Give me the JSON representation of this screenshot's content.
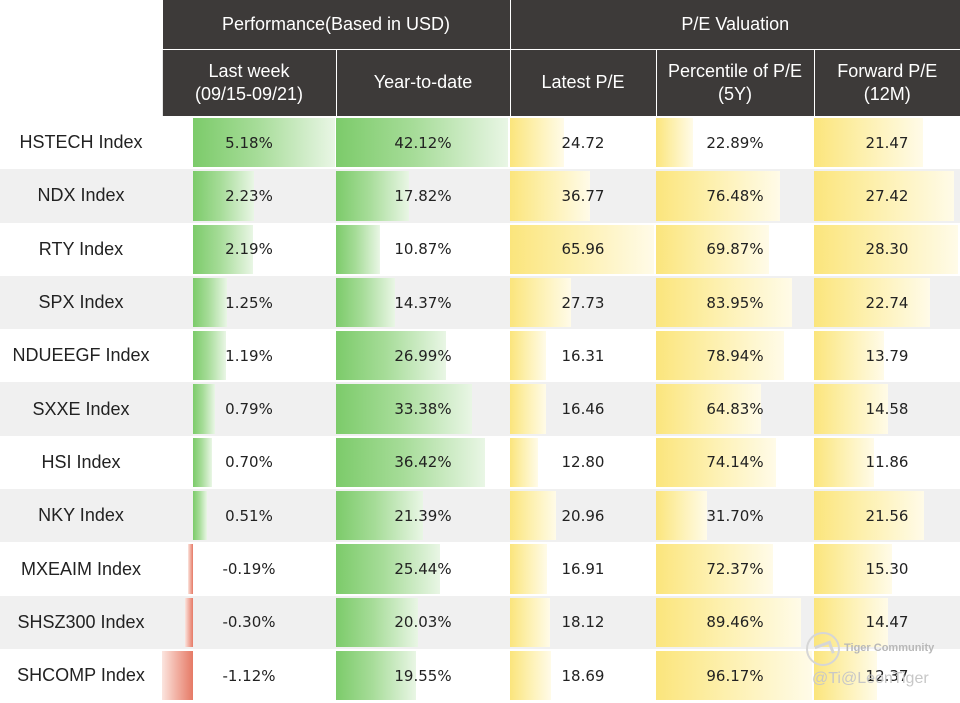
{
  "header": {
    "group_performance": "Performance(Based in USD)",
    "group_valuation": "P/E Valuation",
    "col_last_week_l1": "Last week",
    "col_last_week_l2": "(09/15-09/21)",
    "col_ytd": "Year-to-date",
    "col_latest_pe": "Latest P/E",
    "col_pctl_l1": "Percentile of P/E",
    "col_pctl_l2": "(5Y)",
    "col_fwd_l1": "Forward P/E",
    "col_fwd_l2": "(12M)"
  },
  "chart_data": {
    "type": "table",
    "columns": [
      "Last week (09/15-09/21)",
      "Year-to-date",
      "Latest P/E",
      "Percentile of P/E (5Y)",
      "Forward P/E (12M)"
    ],
    "rows": [
      {
        "name": "HSTECH Index",
        "last_week": "5.18%",
        "last_week_v": 5.18,
        "ytd": "42.12%",
        "ytd_v": 42.12,
        "latest_pe": "24.72",
        "latest_pe_v": 24.72,
        "pctl": "22.89%",
        "pctl_v": 22.89,
        "fwd_pe": "21.47",
        "fwd_pe_v": 21.47
      },
      {
        "name": "NDX Index",
        "last_week": "2.23%",
        "last_week_v": 2.23,
        "ytd": "17.82%",
        "ytd_v": 17.82,
        "latest_pe": "36.77",
        "latest_pe_v": 36.77,
        "pctl": "76.48%",
        "pctl_v": 76.48,
        "fwd_pe": "27.42",
        "fwd_pe_v": 27.42
      },
      {
        "name": "RTY Index",
        "last_week": "2.19%",
        "last_week_v": 2.19,
        "ytd": "10.87%",
        "ytd_v": 10.87,
        "latest_pe": "65.96",
        "latest_pe_v": 65.96,
        "pctl": "69.87%",
        "pctl_v": 69.87,
        "fwd_pe": "28.30",
        "fwd_pe_v": 28.3
      },
      {
        "name": "SPX Index",
        "last_week": "1.25%",
        "last_week_v": 1.25,
        "ytd": "14.37%",
        "ytd_v": 14.37,
        "latest_pe": "27.73",
        "latest_pe_v": 27.73,
        "pctl": "83.95%",
        "pctl_v": 83.95,
        "fwd_pe": "22.74",
        "fwd_pe_v": 22.74
      },
      {
        "name": "NDUEEGF Index",
        "last_week": "1.19%",
        "last_week_v": 1.19,
        "ytd": "26.99%",
        "ytd_v": 26.99,
        "latest_pe": "16.31",
        "latest_pe_v": 16.31,
        "pctl": "78.94%",
        "pctl_v": 78.94,
        "fwd_pe": "13.79",
        "fwd_pe_v": 13.79
      },
      {
        "name": "SXXE Index",
        "last_week": "0.79%",
        "last_week_v": 0.79,
        "ytd": "33.38%",
        "ytd_v": 33.38,
        "latest_pe": "16.46",
        "latest_pe_v": 16.46,
        "pctl": "64.83%",
        "pctl_v": 64.83,
        "fwd_pe": "14.58",
        "fwd_pe_v": 14.58
      },
      {
        "name": "HSI Index",
        "last_week": "0.70%",
        "last_week_v": 0.7,
        "ytd": "36.42%",
        "ytd_v": 36.42,
        "latest_pe": "12.80",
        "latest_pe_v": 12.8,
        "pctl": "74.14%",
        "pctl_v": 74.14,
        "fwd_pe": "11.86",
        "fwd_pe_v": 11.86
      },
      {
        "name": "NKY Index",
        "last_week": "0.51%",
        "last_week_v": 0.51,
        "ytd": "21.39%",
        "ytd_v": 21.39,
        "latest_pe": "20.96",
        "latest_pe_v": 20.96,
        "pctl": "31.70%",
        "pctl_v": 31.7,
        "fwd_pe": "21.56",
        "fwd_pe_v": 21.56
      },
      {
        "name": "MXEAIM Index",
        "last_week": "-0.19%",
        "last_week_v": -0.19,
        "ytd": "25.44%",
        "ytd_v": 25.44,
        "latest_pe": "16.91",
        "latest_pe_v": 16.91,
        "pctl": "72.37%",
        "pctl_v": 72.37,
        "fwd_pe": "15.30",
        "fwd_pe_v": 15.3
      },
      {
        "name": "SHSZ300 Index",
        "last_week": "-0.30%",
        "last_week_v": -0.3,
        "ytd": "20.03%",
        "ytd_v": 20.03,
        "latest_pe": "18.12",
        "latest_pe_v": 18.12,
        "pctl": "89.46%",
        "pctl_v": 89.46,
        "fwd_pe": "14.47",
        "fwd_pe_v": 14.47
      },
      {
        "name": "SHCOMP Index",
        "last_week": "-1.12%",
        "last_week_v": -1.12,
        "ytd": "19.55%",
        "ytd_v": 19.55,
        "latest_pe": "18.69",
        "latest_pe_v": 18.69,
        "pctl": "96.17%",
        "pctl_v": 96.17,
        "fwd_pe": "12.37",
        "fwd_pe_v": 12.37
      }
    ]
  },
  "colors": {
    "header_bg": "#3d3a39",
    "positive_bar": "#7ccb6a",
    "negative_bar": "#e67a66",
    "valuation_bar": "#fbe57c",
    "alt_row": "#f0f0f0"
  },
  "watermark": {
    "logo_icon": "tiger-logo-icon",
    "brand": "Tiger Community",
    "handle": "@Ti@LeonTiger"
  }
}
